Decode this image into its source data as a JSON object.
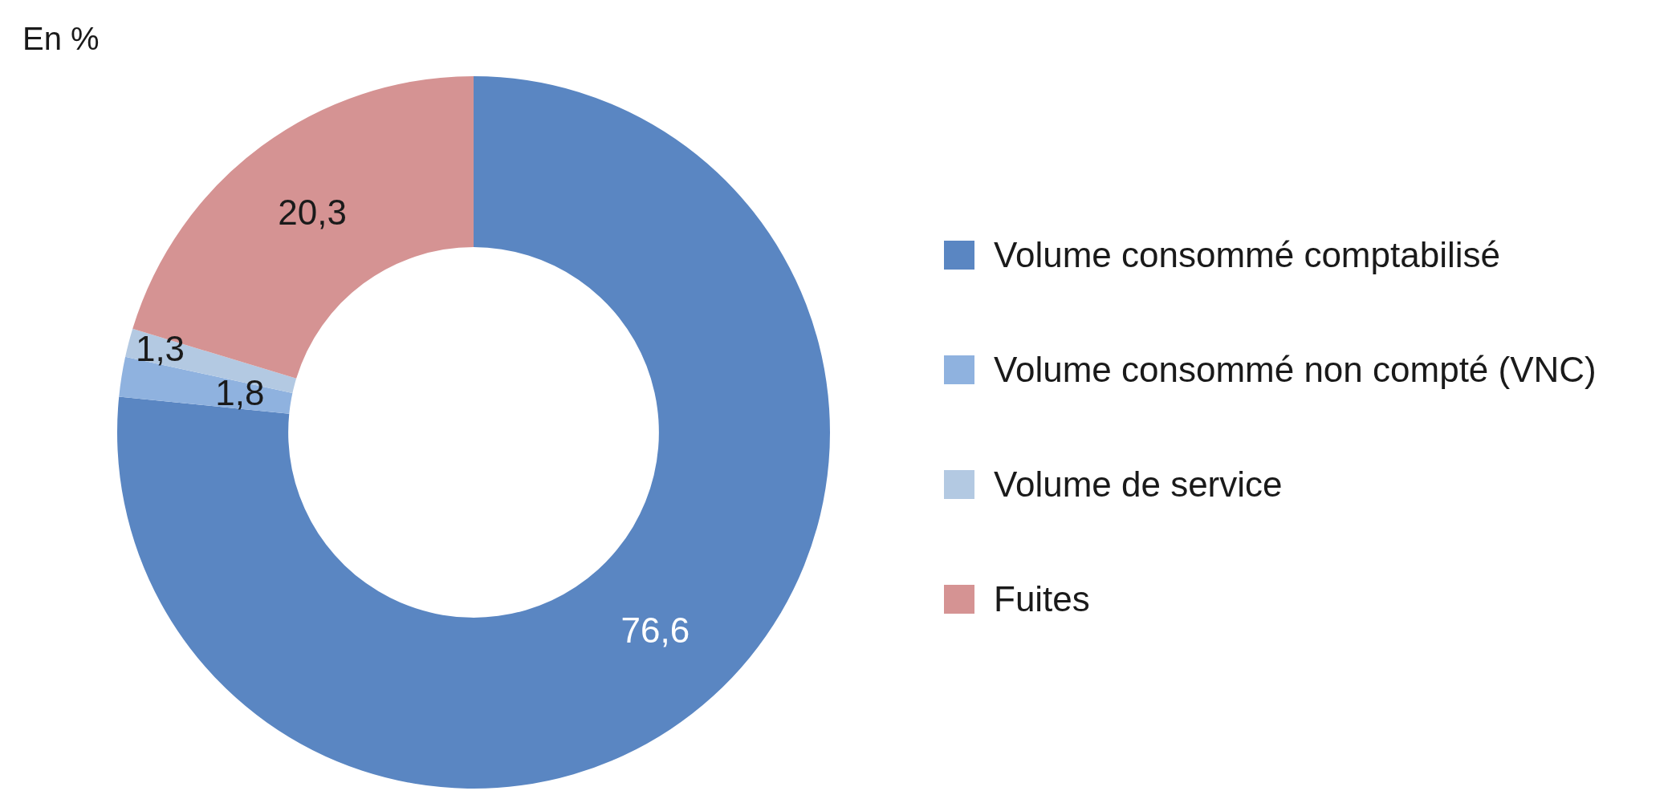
{
  "chart_data": {
    "type": "donut",
    "title": "En %",
    "categories": [
      "Volume consommé comptabilisé",
      "Volume consommé non compté (VNC)",
      "Volume de service",
      "Fuites"
    ],
    "values": [
      76.6,
      1.8,
      1.3,
      20.3
    ],
    "colors": [
      "#5a86c2",
      "#8fb2df",
      "#b3c9e2",
      "#d59393"
    ],
    "value_labels": [
      "76,6",
      "1,8",
      "1,3",
      "20,3"
    ],
    "legend": "right"
  }
}
